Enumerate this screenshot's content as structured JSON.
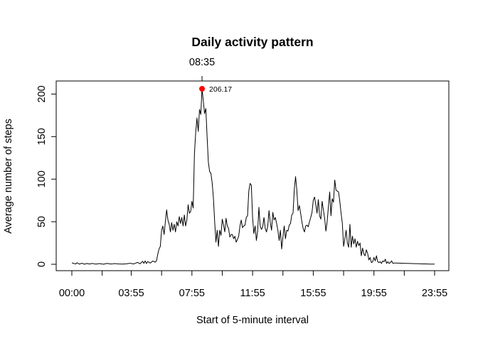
{
  "chart_data": {
    "type": "line",
    "title": "Daily activity pattern",
    "xlabel": "Start of 5-minute interval",
    "ylabel": "Average number of steps",
    "xlim": [
      0,
      287
    ],
    "ylim": [
      0,
      206.17
    ],
    "x_ticks": [
      {
        "index": 0,
        "label": "00:00"
      },
      {
        "index": 24,
        "label": ""
      },
      {
        "index": 47,
        "label": "03:55"
      },
      {
        "index": 71,
        "label": ""
      },
      {
        "index": 95,
        "label": "07:55"
      },
      {
        "index": 119,
        "label": ""
      },
      {
        "index": 143,
        "label": "11:55"
      },
      {
        "index": 167,
        "label": ""
      },
      {
        "index": 191,
        "label": "15:55"
      },
      {
        "index": 215,
        "label": ""
      },
      {
        "index": 239,
        "label": "19:55"
      },
      {
        "index": 263,
        "label": ""
      },
      {
        "index": 287,
        "label": "23:55"
      }
    ],
    "y_ticks": [
      0,
      50,
      100,
      150,
      200
    ],
    "peak": {
      "index": 103,
      "time_label": "08:35",
      "value": 206.17,
      "value_label": "206.17",
      "color": "#ff0000"
    },
    "series": [
      {
        "color": "#000000",
        "x_start": "00:00",
        "x_step_minutes": 5,
        "points": [
          [
            0,
            1.7
          ],
          [
            3,
            0.3
          ],
          [
            4,
            1.8
          ],
          [
            6,
            0.2
          ],
          [
            8,
            1.2
          ],
          [
            10,
            0.1
          ],
          [
            12,
            0.9
          ],
          [
            14,
            0.3
          ],
          [
            16,
            1.0
          ],
          [
            19,
            0.2
          ],
          [
            22,
            0.8
          ],
          [
            25,
            0.1
          ],
          [
            28,
            1.0
          ],
          [
            31,
            0.3
          ],
          [
            34,
            0.8
          ],
          [
            37,
            0.4
          ],
          [
            40,
            0.2
          ],
          [
            43,
            0.5
          ],
          [
            46,
            1.2
          ],
          [
            49,
            0.4
          ],
          [
            52,
            2.2
          ],
          [
            54,
            0.6
          ],
          [
            56,
            3.5
          ],
          [
            57,
            1.1
          ],
          [
            58,
            4.0
          ],
          [
            59,
            0.8
          ],
          [
            60,
            3.2
          ],
          [
            62,
            1.4
          ],
          [
            64,
            3.8
          ],
          [
            66,
            2.5
          ],
          [
            67,
            4.2
          ],
          [
            68,
            12
          ],
          [
            69,
            18
          ],
          [
            70,
            21
          ],
          [
            71,
            40
          ],
          [
            72,
            45
          ],
          [
            73,
            35
          ],
          [
            74,
            50
          ],
          [
            75,
            64
          ],
          [
            76,
            52
          ],
          [
            77,
            47
          ],
          [
            78,
            38
          ],
          [
            79,
            49
          ],
          [
            80,
            40
          ],
          [
            81,
            47
          ],
          [
            82,
            38
          ],
          [
            83,
            50
          ],
          [
            84,
            45
          ],
          [
            85,
            56
          ],
          [
            86,
            48
          ],
          [
            87,
            55
          ],
          [
            88,
            45
          ],
          [
            89,
            58
          ],
          [
            90,
            45
          ],
          [
            91,
            52
          ],
          [
            92,
            70
          ],
          [
            93,
            60
          ],
          [
            94,
            62
          ],
          [
            95,
            74
          ],
          [
            96,
            66
          ],
          [
            97,
            130
          ],
          [
            98,
            155
          ],
          [
            99,
            172
          ],
          [
            100,
            156
          ],
          [
            101,
            182
          ],
          [
            102,
            176
          ],
          [
            103,
            206.17
          ],
          [
            104,
            192
          ],
          [
            105,
            177
          ],
          [
            106,
            183
          ],
          [
            107,
            150
          ],
          [
            108,
            120
          ],
          [
            109,
            109
          ],
          [
            110,
            107
          ],
          [
            111,
            96
          ],
          [
            112,
            78
          ],
          [
            113,
            50
          ],
          [
            114,
            26
          ],
          [
            115,
            40
          ],
          [
            116,
            21
          ],
          [
            117,
            40
          ],
          [
            118,
            34
          ],
          [
            119,
            53
          ],
          [
            120,
            46
          ],
          [
            121,
            38
          ],
          [
            122,
            54
          ],
          [
            123,
            45
          ],
          [
            124,
            42
          ],
          [
            125,
            32
          ],
          [
            126,
            35
          ],
          [
            127,
            35
          ],
          [
            128,
            30
          ],
          [
            129,
            33
          ],
          [
            130,
            26
          ],
          [
            131,
            29
          ],
          [
            132,
            33
          ],
          [
            133,
            45
          ],
          [
            134,
            52
          ],
          [
            135,
            43
          ],
          [
            136,
            45
          ],
          [
            137,
            46
          ],
          [
            138,
            55
          ],
          [
            139,
            57
          ],
          [
            140,
            86
          ],
          [
            141,
            95
          ],
          [
            142,
            93
          ],
          [
            143,
            55
          ],
          [
            144,
            36
          ],
          [
            145,
            45
          ],
          [
            146,
            28
          ],
          [
            147,
            39
          ],
          [
            148,
            67
          ],
          [
            149,
            45
          ],
          [
            150,
            41
          ],
          [
            151,
            44
          ],
          [
            152,
            55
          ],
          [
            153,
            42
          ],
          [
            154,
            38
          ],
          [
            155,
            45
          ],
          [
            156,
            63
          ],
          [
            157,
            49
          ],
          [
            158,
            40
          ],
          [
            159,
            61
          ],
          [
            160,
            52
          ],
          [
            161,
            55
          ],
          [
            162,
            48
          ],
          [
            163,
            40
          ],
          [
            164,
            28
          ],
          [
            165,
            40
          ],
          [
            166,
            18
          ],
          [
            167,
            32
          ],
          [
            168,
            45
          ],
          [
            169,
            30
          ],
          [
            170,
            40
          ],
          [
            171,
            39
          ],
          [
            172,
            46
          ],
          [
            173,
            48
          ],
          [
            174,
            58
          ],
          [
            175,
            60
          ],
          [
            176,
            88
          ],
          [
            177,
            103
          ],
          [
            178,
            87
          ],
          [
            179,
            63
          ],
          [
            180,
            69
          ],
          [
            181,
            60
          ],
          [
            182,
            50
          ],
          [
            183,
            42
          ],
          [
            184,
            38
          ],
          [
            185,
            45
          ],
          [
            186,
            46
          ],
          [
            187,
            44
          ],
          [
            188,
            50
          ],
          [
            189,
            55
          ],
          [
            190,
            61
          ],
          [
            191,
            75
          ],
          [
            192,
            79
          ],
          [
            193,
            70
          ],
          [
            194,
            60
          ],
          [
            195,
            76
          ],
          [
            196,
            57
          ],
          [
            197,
            53
          ],
          [
            198,
            74
          ],
          [
            199,
            64
          ],
          [
            200,
            54
          ],
          [
            201,
            39
          ],
          [
            202,
            50
          ],
          [
            203,
            68
          ],
          [
            204,
            85
          ],
          [
            205,
            57
          ],
          [
            206,
            77
          ],
          [
            207,
            73
          ],
          [
            208,
            99
          ],
          [
            209,
            87
          ],
          [
            210,
            86
          ],
          [
            211,
            85
          ],
          [
            212,
            74
          ],
          [
            213,
            60
          ],
          [
            214,
            48
          ],
          [
            215,
            21
          ],
          [
            216,
            30
          ],
          [
            217,
            40
          ],
          [
            218,
            25
          ],
          [
            219,
            20
          ],
          [
            220,
            47
          ],
          [
            221,
            20
          ],
          [
            222,
            33
          ],
          [
            223,
            24
          ],
          [
            224,
            30
          ],
          [
            225,
            20
          ],
          [
            226,
            27
          ],
          [
            227,
            22
          ],
          [
            228,
            25
          ],
          [
            229,
            10
          ],
          [
            230,
            19
          ],
          [
            231,
            12
          ],
          [
            232,
            10
          ],
          [
            233,
            17
          ],
          [
            234,
            13
          ],
          [
            235,
            5
          ],
          [
            236,
            8
          ],
          [
            237,
            2
          ],
          [
            238,
            3
          ],
          [
            239,
            8
          ],
          [
            240,
            4
          ],
          [
            241,
            10
          ],
          [
            242,
            3
          ],
          [
            243,
            2
          ],
          [
            244,
            3
          ],
          [
            245,
            1
          ],
          [
            246,
            4
          ],
          [
            247,
            3
          ],
          [
            248,
            6
          ],
          [
            249,
            1
          ],
          [
            250,
            3
          ],
          [
            251,
            1
          ],
          [
            252,
            2
          ],
          [
            253,
            4
          ],
          [
            254,
            1
          ],
          [
            255,
            1.5
          ]
        ]
      }
    ]
  }
}
